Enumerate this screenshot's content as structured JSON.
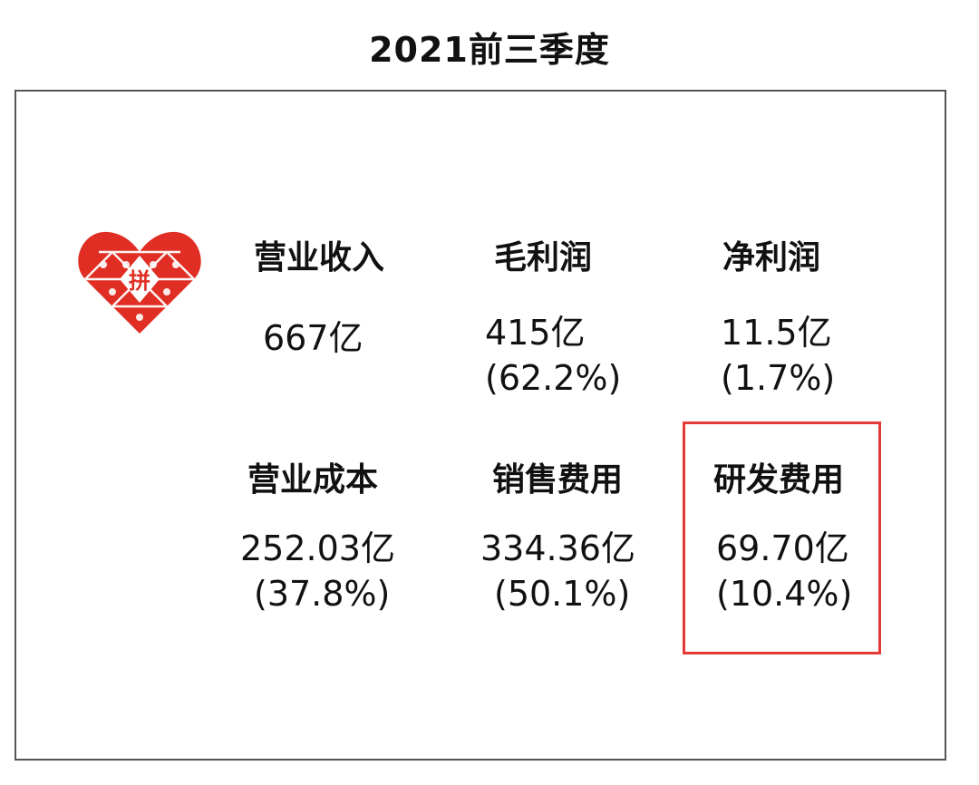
{
  "title": "2021前三季度",
  "logo": {
    "glyph": "拼",
    "color": "#e02e24"
  },
  "highlight_color": "#e53935",
  "metrics": [
    {
      "label": "营业收入",
      "value": "667亿",
      "share": ""
    },
    {
      "label": "毛利润",
      "value": "415亿",
      "share": "(62.2%)"
    },
    {
      "label": "净利润",
      "value": "11.5亿",
      "share": "(1.7%)"
    },
    {
      "label": "营业成本",
      "value": "252.03亿",
      "share": "(37.8%)"
    },
    {
      "label": "销售费用",
      "value": "334.36亿",
      "share": "(50.1%)"
    },
    {
      "label": "研发费用",
      "value": "69.70亿",
      "share": "(10.4%)"
    }
  ]
}
